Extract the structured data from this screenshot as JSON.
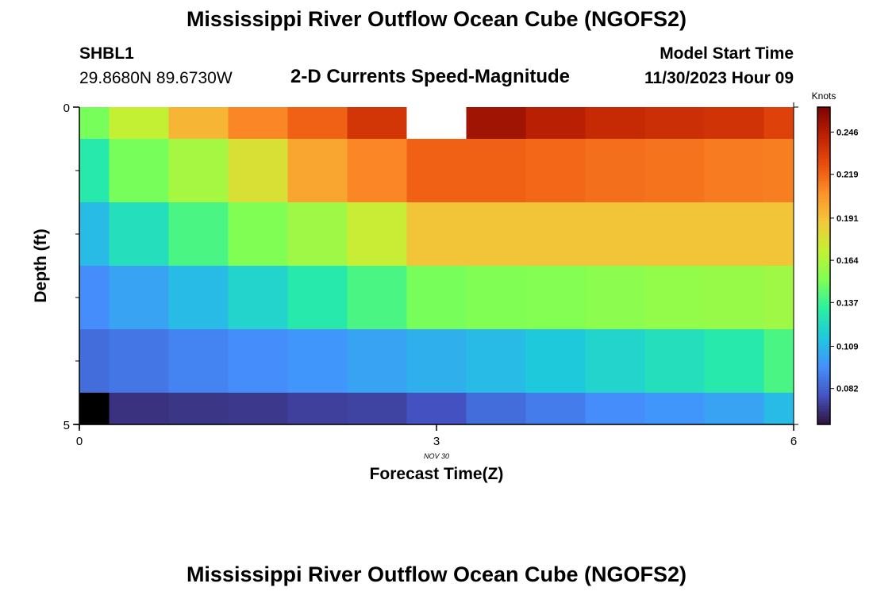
{
  "header": {
    "title": "Mississippi River Outflow Ocean Cube (NGOFS2)",
    "station_id": "SHBL1",
    "coordinates": "29.8680N  89.6730W",
    "subtitle": "2-D Currents Speed-Magnitude",
    "model_start_label": "Model Start Time",
    "model_start_value": "11/30/2023 Hour 09"
  },
  "footer": {
    "title": "Mississippi River Outflow Ocean Cube (NGOFS2)"
  },
  "chart_data": {
    "type": "heatmap",
    "title": "2-D Currents Speed-Magnitude",
    "xlabel": "Forecast Time(Z)",
    "ylabel": "Depth (ft)",
    "date_label": "NOV  30",
    "xlim": [
      0,
      6
    ],
    "ylim": [
      0,
      5
    ],
    "x_ticks": [
      0,
      3,
      6
    ],
    "y_ticks": [
      0,
      5
    ],
    "x_edges": [
      0,
      0.25,
      0.75,
      1.25,
      1.75,
      2.25,
      2.75,
      3.25,
      3.75,
      4.25,
      4.75,
      5.25,
      5.75,
      6
    ],
    "y_edges": [
      0,
      0.5,
      1.5,
      2.5,
      3.5,
      4.5,
      5
    ],
    "values": [
      [
        0.15,
        0.17,
        0.195,
        0.21,
        0.22,
        0.235,
        null,
        0.252,
        0.245,
        0.24,
        0.238,
        0.236,
        0.23
      ],
      [
        0.13,
        0.15,
        0.162,
        0.178,
        0.2,
        0.21,
        0.22,
        0.22,
        0.218,
        0.216,
        0.215,
        0.213,
        0.212
      ],
      [
        0.11,
        0.125,
        0.14,
        0.152,
        0.16,
        0.172,
        0.19,
        0.19,
        0.19,
        0.19,
        0.19,
        0.19,
        0.19
      ],
      [
        0.095,
        0.102,
        0.11,
        0.12,
        0.13,
        0.14,
        0.15,
        0.152,
        0.153,
        0.155,
        0.157,
        0.158,
        0.16
      ],
      [
        0.085,
        0.088,
        0.092,
        0.095,
        0.098,
        0.102,
        0.106,
        0.11,
        0.115,
        0.12,
        0.125,
        0.13,
        0.14
      ],
      [
        0.05,
        0.068,
        0.069,
        0.07,
        0.072,
        0.073,
        0.077,
        0.085,
        0.09,
        0.095,
        0.098,
        0.102,
        0.11
      ]
    ],
    "colorbar": {
      "label": "Knots",
      "min": 0.059,
      "max": 0.262,
      "ticks": [
        0.246,
        0.219,
        0.191,
        0.164,
        0.137,
        0.109,
        0.082
      ]
    },
    "colormap": [
      "#30123b",
      "#4454c4",
      "#4490fe",
      "#1fc8de",
      "#29efa2",
      "#7eff55",
      "#c3f133",
      "#f1ca3a",
      "#fe922a",
      "#ea4e0d",
      "#be2102",
      "#7a0403"
    ]
  }
}
